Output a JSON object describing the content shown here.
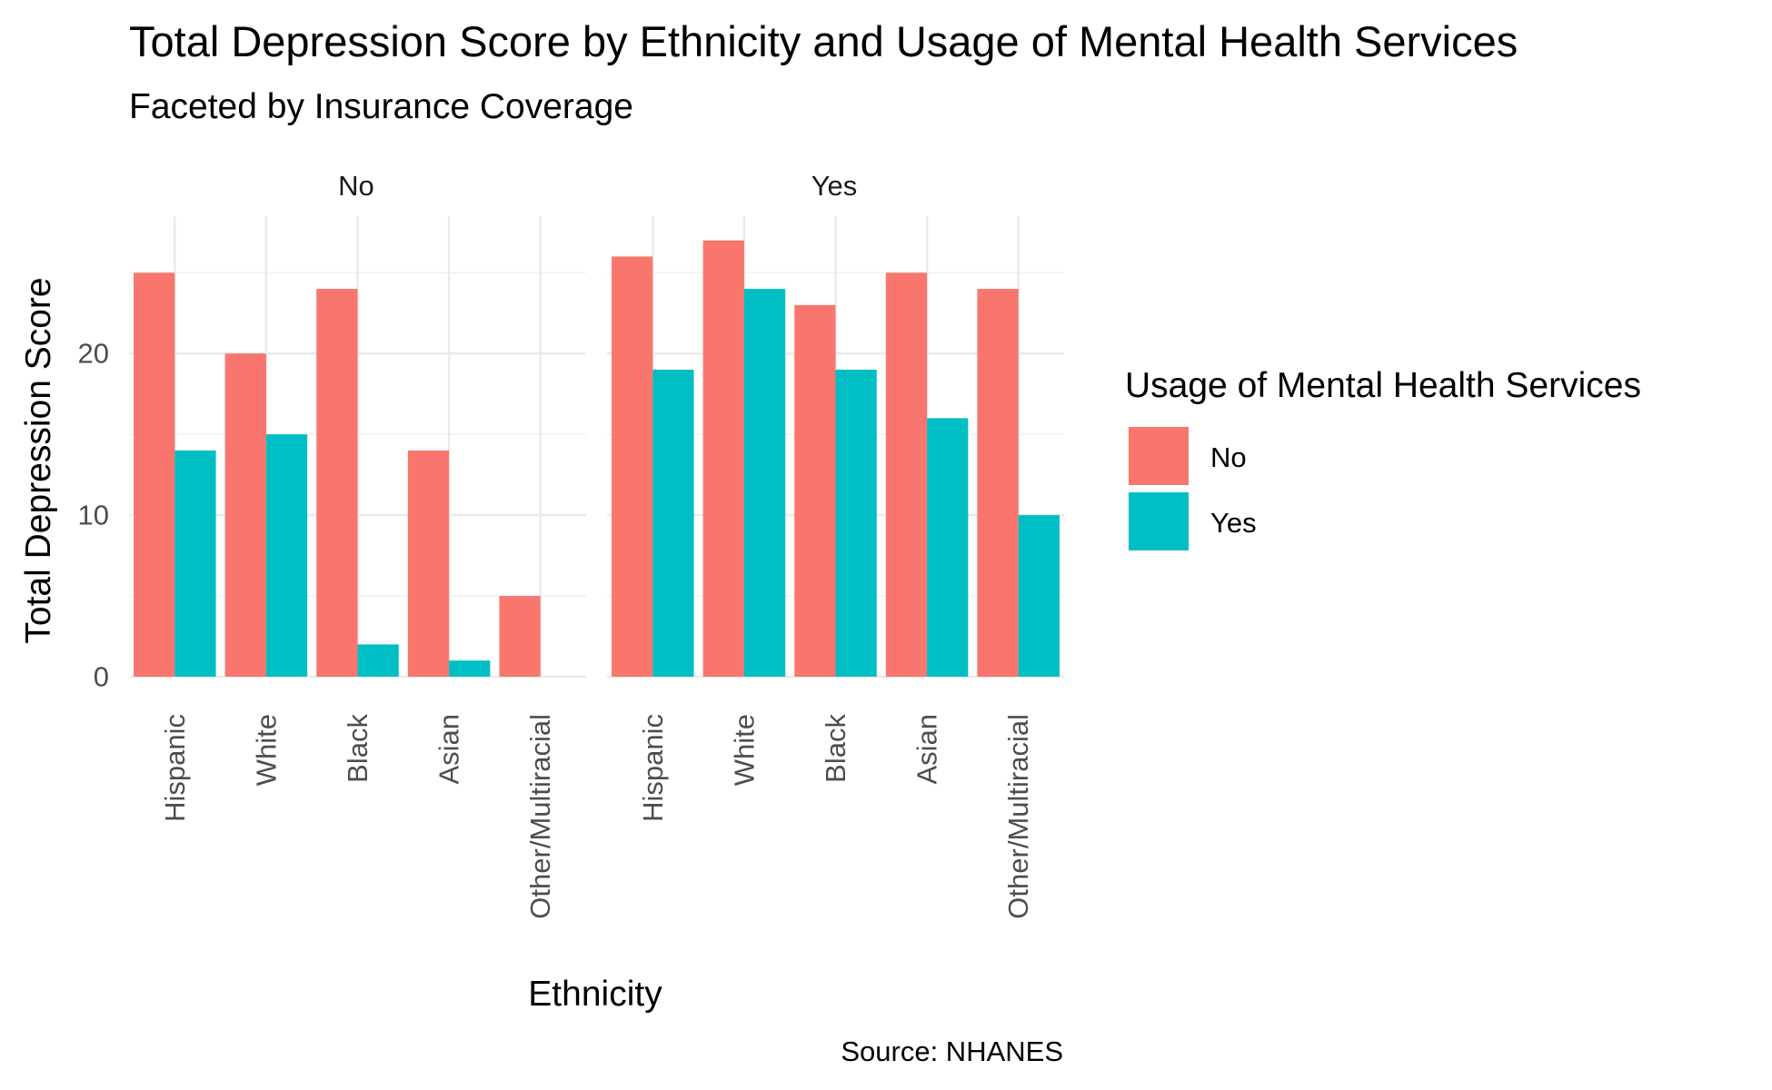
{
  "chart_data": {
    "type": "bar",
    "title": "Total Depression Score by Ethnicity and Usage of Mental Health Services",
    "subtitle": "Faceted by Insurance Coverage",
    "caption": "Source: NHANES",
    "xlabel": "Ethnicity",
    "ylabel": "Total Depression Score",
    "ylim": [
      0,
      28.5
    ],
    "yticks": [
      0,
      10,
      20
    ],
    "categories": [
      "Hispanic",
      "White",
      "Black",
      "Asian",
      "Other/Multiracial"
    ],
    "legend": {
      "title": "Usage of Mental Health Services",
      "placement": "right"
    },
    "colors": {
      "No": "#F8766D",
      "Yes": "#00BFC4"
    },
    "facets": [
      {
        "label": "No",
        "series": [
          {
            "name": "No",
            "values": [
              25,
              20,
              24,
              14,
              5
            ]
          },
          {
            "name": "Yes",
            "values": [
              14,
              15,
              2,
              1,
              0
            ]
          }
        ]
      },
      {
        "label": "Yes",
        "series": [
          {
            "name": "No",
            "values": [
              26,
              27,
              23,
              25,
              24
            ]
          },
          {
            "name": "Yes",
            "values": [
              19,
              24,
              19,
              16,
              10
            ]
          }
        ]
      }
    ]
  }
}
